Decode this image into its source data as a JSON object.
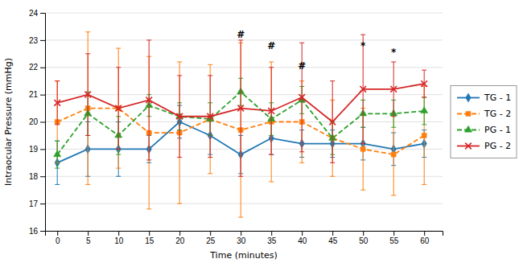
{
  "chart_data": {
    "type": "line",
    "x": [
      0,
      5,
      10,
      15,
      20,
      25,
      30,
      35,
      40,
      45,
      50,
      55,
      60
    ],
    "xlim": [
      -2,
      63
    ],
    "xticks": [
      0,
      5,
      10,
      15,
      20,
      25,
      30,
      35,
      40,
      45,
      50,
      55,
      60
    ],
    "ylim": [
      16,
      24
    ],
    "yticks": [
      16,
      17,
      18,
      19,
      20,
      21,
      22,
      23,
      24
    ],
    "xlabel": "Time (minutes)",
    "ylabel": "Intraocular Pressure (mmHg)",
    "grid": true,
    "legend": "right",
    "series": [
      {
        "name": "TG - 1",
        "marker": "diamond",
        "line_style": "solid",
        "values": [
          18.5,
          19.0,
          19.0,
          19.0,
          20.0,
          19.5,
          18.8,
          19.4,
          19.2,
          19.2,
          19.2,
          19.0,
          19.2
        ],
        "errors": [
          0.8,
          1.0,
          1.0,
          0.5,
          0.6,
          0.7,
          0.7,
          0.6,
          0.5,
          0.5,
          0.6,
          0.6,
          0.5
        ]
      },
      {
        "name": "TG - 2",
        "marker": "square",
        "line_style": "dashed",
        "values": [
          20.0,
          20.5,
          20.5,
          19.6,
          19.6,
          20.1,
          19.7,
          20.0,
          20.0,
          19.4,
          19.0,
          18.8,
          19.5
        ],
        "errors": [
          1.5,
          2.8,
          2.2,
          2.8,
          2.6,
          2.0,
          3.2,
          2.2,
          1.5,
          1.4,
          1.5,
          1.5,
          1.8
        ]
      },
      {
        "name": "PG - 1",
        "marker": "triangle",
        "line_style": "dashed",
        "values": [
          18.8,
          20.3,
          19.5,
          20.6,
          20.2,
          20.1,
          21.1,
          20.1,
          20.8,
          19.4,
          20.3,
          20.3,
          20.4
        ],
        "errors": [
          0.5,
          0.8,
          0.7,
          0.4,
          0.5,
          0.6,
          0.5,
          0.6,
          0.5,
          0.6,
          0.5,
          0.5,
          0.5
        ]
      },
      {
        "name": "PG - 2",
        "marker": "x",
        "line_style": "solid",
        "values": [
          20.7,
          21.0,
          20.5,
          20.8,
          20.2,
          20.2,
          20.5,
          20.4,
          20.9,
          20.0,
          21.2,
          21.2,
          21.4
        ],
        "errors": [
          0.8,
          1.5,
          1.5,
          2.2,
          1.5,
          1.5,
          2.5,
          1.6,
          2.0,
          1.5,
          2.0,
          1.0,
          0.5
        ]
      }
    ],
    "annotations": [
      {
        "x": 30,
        "y": 23.0,
        "text": "#"
      },
      {
        "x": 35,
        "y": 22.6,
        "text": "#"
      },
      {
        "x": 40,
        "y": 21.85,
        "text": "#"
      },
      {
        "x": 50,
        "y": 22.6,
        "text": "*"
      },
      {
        "x": 55,
        "y": 22.35,
        "text": "*"
      }
    ]
  }
}
